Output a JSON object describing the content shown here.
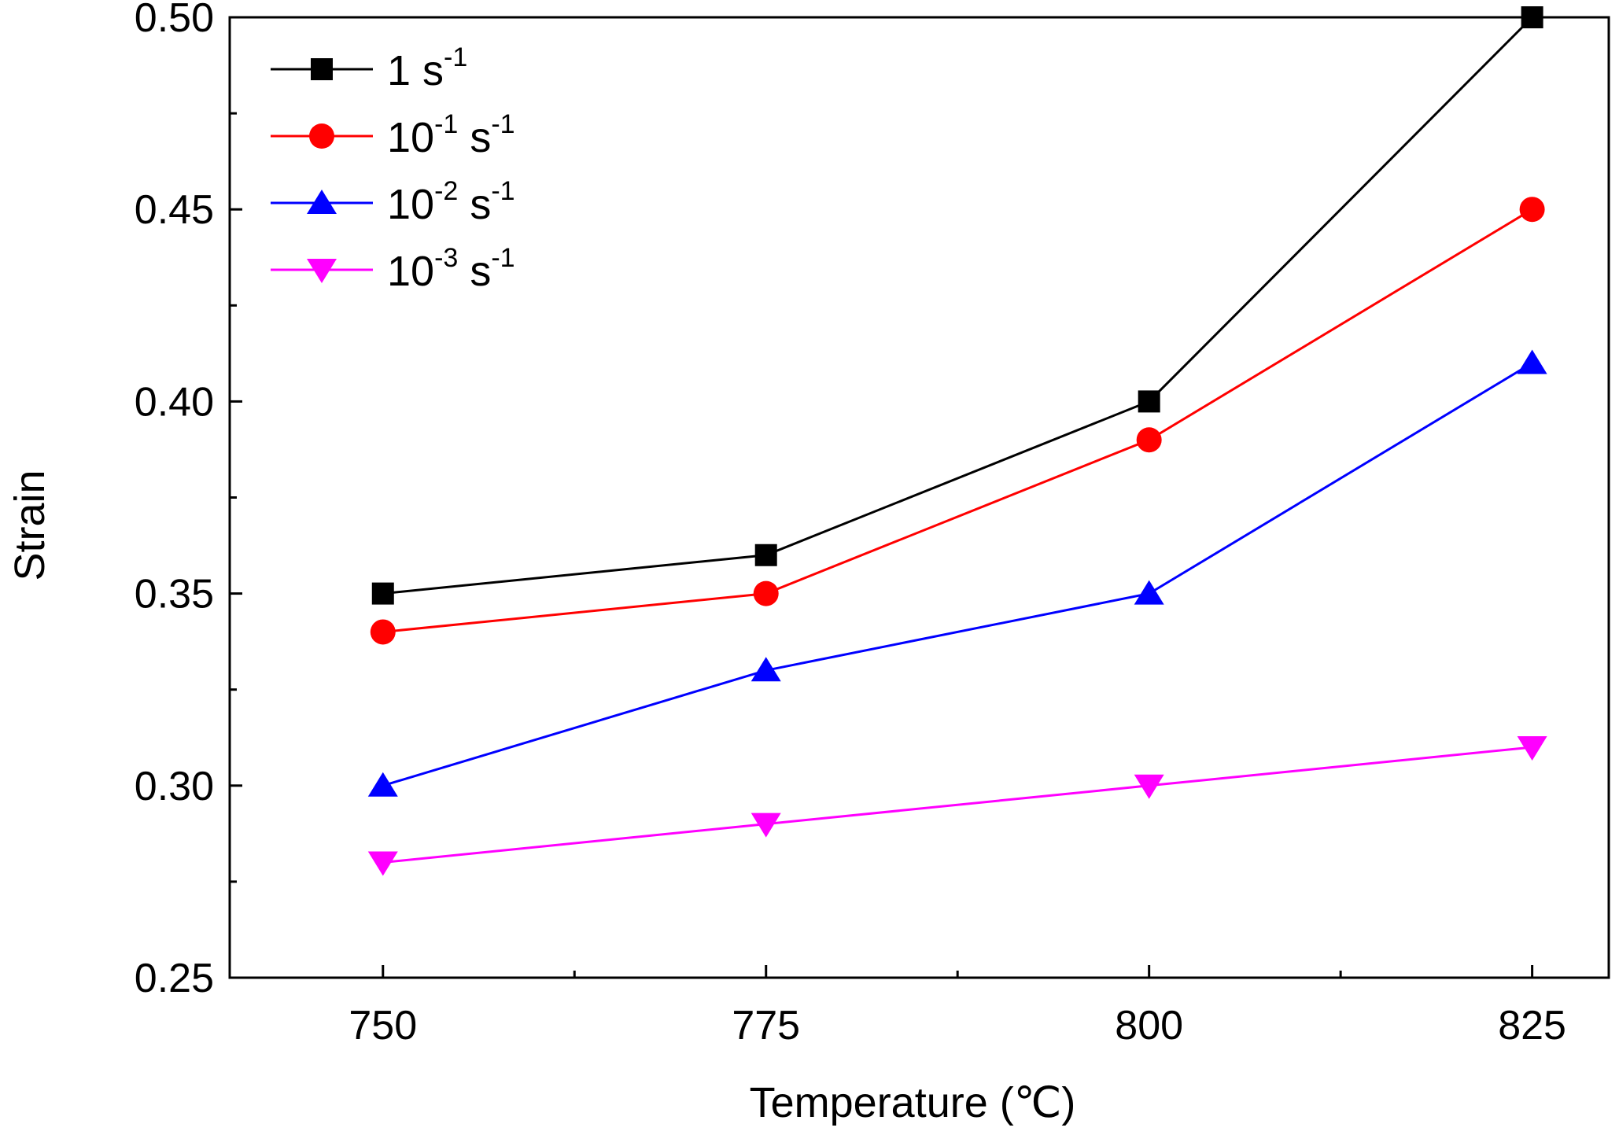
{
  "chart_data": {
    "type": "line",
    "title": "",
    "xlabel": "Temperature (℃)",
    "ylabel": "Strain",
    "x": [
      750,
      775,
      800,
      825
    ],
    "xlim": [
      740,
      830
    ],
    "ylim": [
      0.25,
      0.5
    ],
    "xticks": [
      "750",
      "775",
      "800",
      "825"
    ],
    "yticks": [
      "0.25",
      "0.30",
      "0.35",
      "0.40",
      "0.45",
      "0.50"
    ],
    "grid": false,
    "legend_position": "top-left",
    "series": [
      {
        "name": "1 s-1",
        "base": "1 s",
        "exp": "-1",
        "marker": "square",
        "color": "#000000",
        "values": [
          0.35,
          0.36,
          0.4,
          0.5
        ]
      },
      {
        "name": "10-1 s-1",
        "base": "10",
        "baseExp": "-1",
        "unit": " s",
        "exp": "-1",
        "marker": "circle",
        "color": "#ff0000",
        "values": [
          0.34,
          0.35,
          0.39,
          0.45
        ]
      },
      {
        "name": "10-2 s-1",
        "base": "10",
        "baseExp": "-2",
        "unit": " s",
        "exp": "-1",
        "marker": "triangle-up",
        "color": "#0000ff",
        "values": [
          0.3,
          0.33,
          0.35,
          0.41
        ]
      },
      {
        "name": "10-3 s-1",
        "base": "10",
        "baseExp": "-3",
        "unit": " s",
        "exp": "-1",
        "marker": "triangle-down",
        "color": "#ff00ff",
        "values": [
          0.28,
          0.29,
          0.3,
          0.31
        ]
      }
    ]
  }
}
